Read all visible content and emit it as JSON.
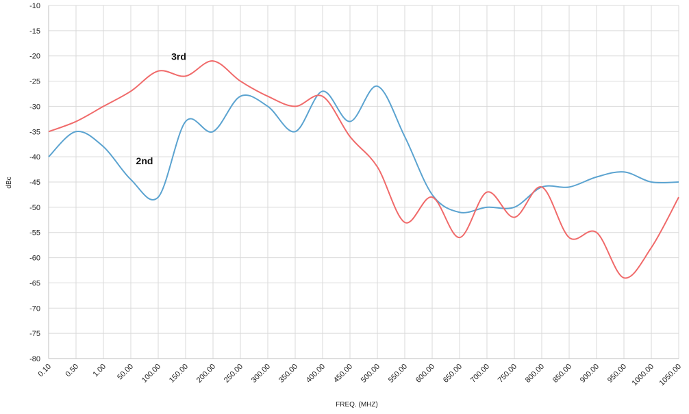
{
  "chart_data": {
    "type": "line",
    "title": "",
    "xlabel": "FREQ. (MHZ)",
    "ylabel": "dBc",
    "categories": [
      "0.10",
      "0.50",
      "1.00",
      "50.00",
      "100.00",
      "150.00",
      "200.00",
      "250.00",
      "300.00",
      "350.00",
      "400.00",
      "450.00",
      "500.00",
      "550.00",
      "600.00",
      "650.00",
      "700.00",
      "750.00",
      "800.00",
      "850.00",
      "900.00",
      "950.00",
      "1000.00",
      "1050.00"
    ],
    "ylim": [
      -80,
      -10
    ],
    "yticks": [
      "-10",
      "-15",
      "-20",
      "-25",
      "-30",
      "-35",
      "-40",
      "-45",
      "-50",
      "-55",
      "-60",
      "-65",
      "-70",
      "-75",
      "-80"
    ],
    "grid": "vertical",
    "legend": "none",
    "series": [
      {
        "name": "2nd",
        "color": "#5ba3d0",
        "values": [
          -40,
          -35,
          -38,
          -44.5,
          -48,
          -33,
          -35,
          -28,
          -30,
          -35,
          -27,
          -33,
          -26,
          -36,
          -47.5,
          -51,
          -50,
          -50,
          -46,
          -46,
          -44,
          -43,
          -45,
          -45
        ]
      },
      {
        "name": "3rd",
        "color": "#f06a6a",
        "values": [
          -35,
          -33,
          -30,
          -27,
          -23,
          -24,
          -21,
          -25,
          -28,
          -30,
          -28,
          -36,
          -42,
          -53,
          -48,
          -56,
          -47,
          -52,
          -46,
          -56,
          -55,
          -64,
          -58,
          -48
        ]
      }
    ],
    "annotations": [
      {
        "text": "3rd",
        "category_index": 4.75,
        "y": -20.8
      },
      {
        "text": "2nd",
        "category_index": 3.5,
        "y": -41.5
      }
    ]
  }
}
